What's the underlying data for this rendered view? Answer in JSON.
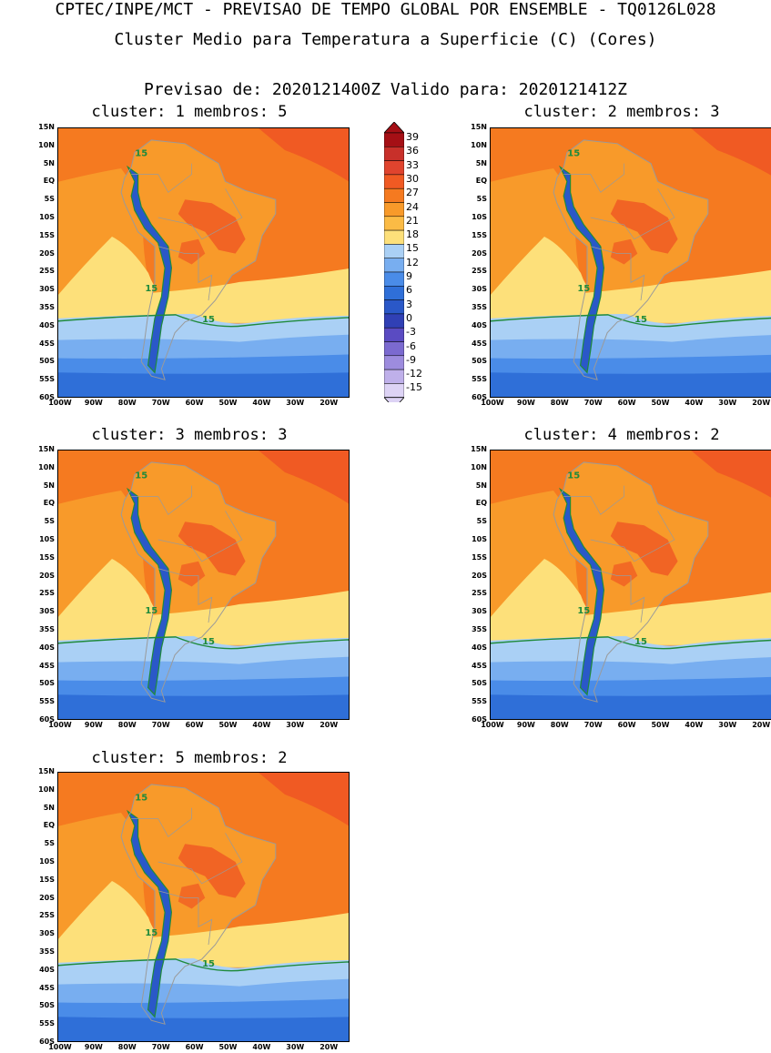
{
  "header": {
    "title_line1": "CPTEC/INPE/MCT - PREVISAO DE TEMPO GLOBAL POR ENSEMBLE - TQ0126L028",
    "title_line2": "Cluster Medio para Temperatura a Superficie (C) (Cores)",
    "forecast_line": "Previsao de: 2020121400Z   Valido para: 2020121412Z"
  },
  "panels": [
    {
      "title": "cluster: 1  membros: 5"
    },
    {
      "title": "cluster: 2  membros: 3"
    },
    {
      "title": "cluster: 3  membros: 3"
    },
    {
      "title": "cluster: 4  membros: 2"
    },
    {
      "title": "cluster: 5  membros: 2"
    }
  ],
  "axes": {
    "lat_labels": [
      "15N",
      "10N",
      "5N",
      "EQ",
      "5S",
      "10S",
      "15S",
      "20S",
      "25S",
      "30S",
      "35S",
      "40S",
      "45S",
      "50S",
      "55S",
      "60S"
    ],
    "lon_labels": [
      "100W",
      "90W",
      "80W",
      "70W",
      "60W",
      "50W",
      "40W",
      "30W",
      "20W"
    ]
  },
  "contour_label": "15",
  "colorbar": {
    "labels": [
      "39",
      "36",
      "33",
      "30",
      "27",
      "24",
      "21",
      "18",
      "15",
      "12",
      "9",
      "6",
      "3",
      "0",
      "-3",
      "-6",
      "-9",
      "-12",
      "-15"
    ],
    "colors": [
      "#a50f15",
      "#c8302a",
      "#e0442e",
      "#f05a23",
      "#f57a20",
      "#f89a2a",
      "#fbbb45",
      "#fde07a",
      "#aad0f5",
      "#78aef0",
      "#4a8ce8",
      "#2f6fd8",
      "#2a58c8",
      "#3040b5",
      "#5a4bc2",
      "#7b6ad0",
      "#9d8cde",
      "#bfb0ea",
      "#ddd3f5"
    ],
    "top_arrow_color": "#a50f15",
    "bottom_arrow_color": "#ddd3f5"
  },
  "colors": {
    "ocean_warm": "#f57a20",
    "ocean_mid": "#f89a2a",
    "coast_warm": "#fbbb45",
    "yellow": "#fde07a",
    "blue_light": "#aad0f5",
    "blue_mid": "#78aef0",
    "blue_deep": "#4a8ce8",
    "blue_dark": "#2f6fd8",
    "andes": "#2a58c8",
    "hot": "#f05a23",
    "contour": "#1f8a3b",
    "border": "#9a9a9a"
  }
}
